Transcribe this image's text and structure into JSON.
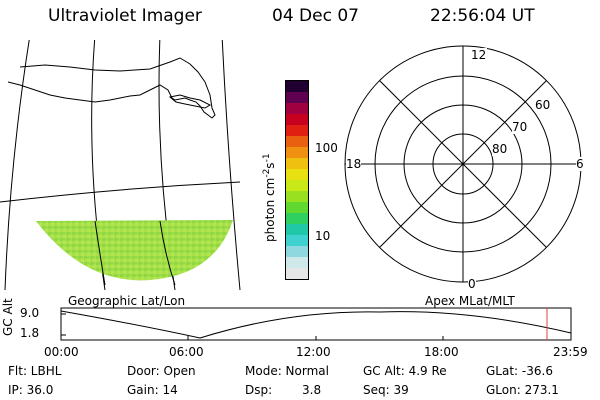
{
  "header": {
    "instrument": "Ultraviolet Imager",
    "date": "04 Dec 07",
    "time": "22:56:04 UT"
  },
  "colorbar": {
    "label": "photon cm",
    "label_exp1": "-2",
    "label_s": "s",
    "label_exp2": "-1",
    "tick_high": "100",
    "tick_low": "10",
    "colors": [
      "#e6e6e6",
      "#cfe8ea",
      "#8fd8e0",
      "#3fd0d0",
      "#20c8a8",
      "#30d060",
      "#60d830",
      "#98e020",
      "#c8e818",
      "#e8e010",
      "#f0c010",
      "#f09010",
      "#e86010",
      "#e02010",
      "#c80020",
      "#a00040",
      "#600050",
      "#200030"
    ]
  },
  "left_panel": {
    "caption": "Geographic Lat/Lon"
  },
  "polar_plot": {
    "caption": "Apex MLat/MLT",
    "mlt_top": "12",
    "mlt_right": "6",
    "mlt_bottom": "0",
    "mlt_left": "18",
    "lat_labels": [
      "60",
      "70",
      "80"
    ]
  },
  "timeline": {
    "ylabel": "GC Alt",
    "ytick_high": "9.0",
    "ytick_low": "1.8",
    "xticks": [
      "00:00",
      "06:00",
      "12:00",
      "18:00",
      "23:59"
    ],
    "marker_color": "#e04040"
  },
  "info": {
    "flt": "Flt: LBHL",
    "ip": "IP: 36.0",
    "door": "Door: Open",
    "gain": "Gain: 14",
    "mode": "Mode: Normal",
    "dsp": "Dsp:",
    "dsp_value": "3.8",
    "gc_alt": "GC Alt: 4.9 Re",
    "seq": "Seq: 39",
    "glat": "GLat: -36.6",
    "glon": "GLon: 273.1"
  }
}
